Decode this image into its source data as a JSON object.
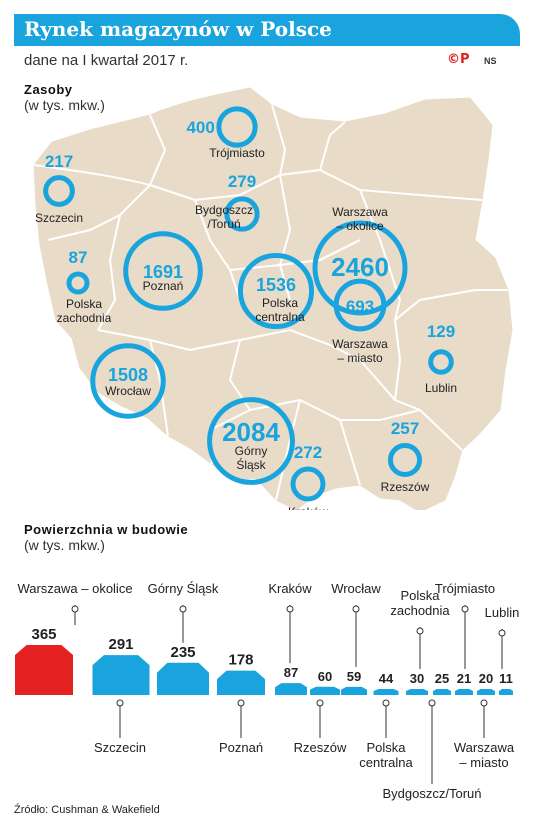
{
  "header": {
    "title": "Rynek magazynów w Polsce",
    "subtitle": "dane na I kwartał 2017 r.",
    "logo": "©P",
    "logo_ns": "NS"
  },
  "map_section": {
    "heading": "Zasoby",
    "unit": "(w tys. mkw.)"
  },
  "bars_section": {
    "heading": "Powierzchnia w budowie",
    "unit": "(w tys. mkw.)"
  },
  "source": "Źródło: Cushman & Wakefield",
  "colors": {
    "accent_blue": "#1aa4dd",
    "highlight_red": "#e52222",
    "map_fill": "#e8dcc8",
    "map_border": "#ffffff"
  },
  "chart_data": [
    {
      "type": "bubble-map",
      "title": "Zasoby",
      "unit": "(w tys. mkw.)",
      "points": [
        {
          "region": "Trójmiasto",
          "value": 400
        },
        {
          "region": "Szczecin",
          "value": 217
        },
        {
          "region": "Bydgoszcz /Toruń",
          "value": 279
        },
        {
          "region": "Warszawa – okolice",
          "value": 2460
        },
        {
          "region": "Warszawa – miasto",
          "value": 693
        },
        {
          "region": "Polska zachodnia",
          "value": 87
        },
        {
          "region": "Poznań",
          "value": 1691
        },
        {
          "region": "Polska centralna",
          "value": 1536
        },
        {
          "region": "Lublin",
          "value": 129
        },
        {
          "region": "Wrocław",
          "value": 1508
        },
        {
          "region": "Górny Śląsk",
          "value": 2084
        },
        {
          "region": "Rzeszów",
          "value": 257
        },
        {
          "region": "Kraków",
          "value": 272
        }
      ]
    },
    {
      "type": "bar",
      "title": "Powierzchnia w budowie",
      "unit": "(w tys. mkw.)",
      "categories": [
        "Warszawa – okolice",
        "Szczecin",
        "Górny Śląsk",
        "Poznań",
        "Kraków",
        "Rzeszów",
        "Wrocław",
        "Polska centralna",
        "Polska zachodnia",
        "Bydgoszcz/Toruń",
        "Trójmiasto",
        "Warszawa – miasto",
        "Lublin"
      ],
      "values": [
        365,
        291,
        235,
        178,
        87,
        60,
        59,
        44,
        30,
        25,
        21,
        20,
        11
      ],
      "highlight_index": 0
    }
  ]
}
